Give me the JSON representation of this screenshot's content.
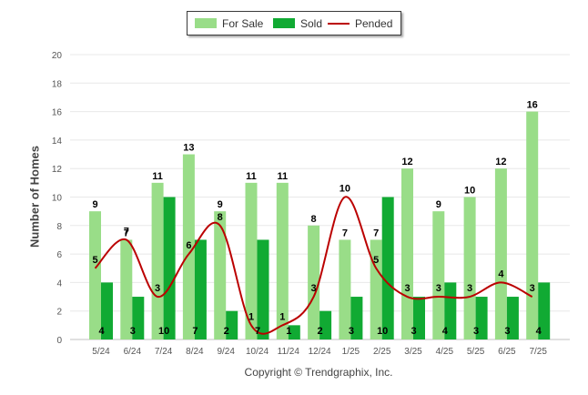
{
  "legend": {
    "items": [
      {
        "label": "For Sale",
        "color": "#99dd88",
        "kind": "bar"
      },
      {
        "label": "Sold",
        "color": "#11aa33",
        "kind": "bar"
      },
      {
        "label": "Pended",
        "color": "#bb0000",
        "kind": "line"
      }
    ]
  },
  "credit": "Copyright © Trendgraphix, Inc.",
  "chart_data": {
    "type": "bar",
    "ylabel": "Number of Homes",
    "xlabel": "",
    "ylim": [
      0,
      20
    ],
    "yticks": [
      0,
      2,
      4,
      6,
      8,
      10,
      12,
      14,
      16,
      18,
      20
    ],
    "grid": true,
    "legend_position": "top-center",
    "categories": [
      "5/24",
      "6/24",
      "7/24",
      "8/24",
      "9/24",
      "10/24",
      "11/24",
      "12/24",
      "1/25",
      "2/25",
      "3/25",
      "4/25",
      "5/25",
      "6/25",
      "7/25"
    ],
    "series": [
      {
        "name": "For Sale",
        "type": "bar",
        "color": "#99dd88",
        "values": [
          9,
          7,
          11,
          13,
          9,
          11,
          11,
          8,
          7,
          7,
          12,
          9,
          10,
          12,
          16
        ]
      },
      {
        "name": "Sold",
        "type": "bar",
        "color": "#11aa33",
        "values": [
          4,
          3,
          10,
          7,
          2,
          7,
          1,
          2,
          3,
          10,
          3,
          4,
          3,
          3,
          4
        ]
      },
      {
        "name": "Pended",
        "type": "line",
        "color": "#bb0000",
        "values": [
          5,
          7,
          3,
          6,
          8,
          1,
          1,
          3,
          10,
          5,
          3,
          3,
          3,
          4,
          3
        ]
      }
    ]
  }
}
